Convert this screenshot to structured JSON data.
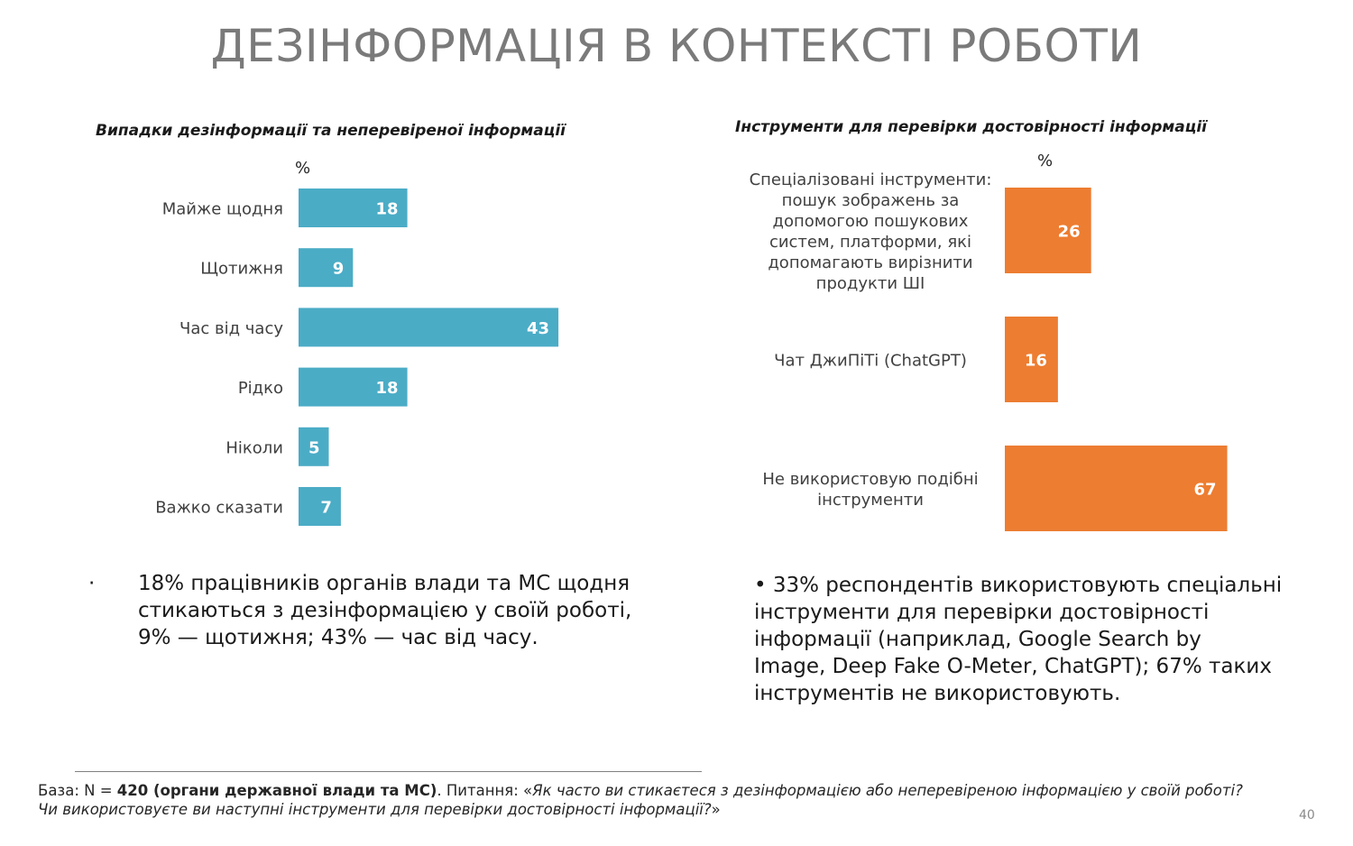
{
  "slide": {
    "title": "ДЕЗІНФОРМАЦІЯ В КОНТЕКСТІ РОБОТИ",
    "page_number": "40"
  },
  "chart_data": [
    {
      "type": "bar",
      "orientation": "horizontal",
      "title": "Випадки дезінформації та неперевіреної інформації",
      "unit": "%",
      "color": "#4bacc6",
      "categories": [
        "Майже щодня",
        "Щотижня",
        "Час від часу",
        "Рідко",
        "Ніколи",
        "Важко сказати"
      ],
      "values": [
        18,
        9,
        43,
        18,
        5,
        7
      ]
    },
    {
      "type": "bar",
      "orientation": "horizontal",
      "title": "Інструменти для перевірки достовірності інформації",
      "unit": "%",
      "color": "#ed7d31",
      "categories": [
        "Спеціалізовані інструменти: пошук зображень за допомогою пошукових систем, платформи, які допомагають вирізнити продукти ШІ",
        "Чат ДжиПіТі (ChatGPT)",
        "Не використовую подібні інструменти"
      ],
      "category_lines": [
        [
          "Спеціалізовані інструменти:",
          "пошук зображень за",
          "допомогою пошукових",
          "систем, платформи, які",
          "допомагають вирізнити",
          "продукти ШІ"
        ],
        [
          "Чат ДжиПіТі (ChatGPT)"
        ],
        [
          "Не використовую подібні",
          "інструменти"
        ]
      ],
      "values": [
        26,
        16,
        67
      ]
    }
  ],
  "bullets": {
    "left": {
      "marker": "·",
      "lines": [
        "18% працівників органів влади та МС щодня",
        "стикаються з дезінформацією у своїй роботі,",
        "9% — щотижня; 43% — час від часу."
      ]
    },
    "right": {
      "lines": [
        "• 33% респондентів використовують спеціальні",
        "інструменти для перевірки достовірності",
        "інформації (наприклад, Google Search by",
        "Image, Deep Fake O-Meter, ChatGPT); 67% таких",
        "інструментів не використовують."
      ]
    }
  },
  "footnote": {
    "base_prefix": "База: N = ",
    "base_bold": "420 (органи державної влади та МС)",
    "question_prefix": ". Питання: «",
    "question_line1": "Як часто ви стикаєтеся з дезінформацією або неперевіреною інформацією у своїй роботі?",
    "question_line2": "Чи використовуєте ви наступні інструменти для перевірки достовірності інформації?",
    "question_suffix": "»"
  }
}
